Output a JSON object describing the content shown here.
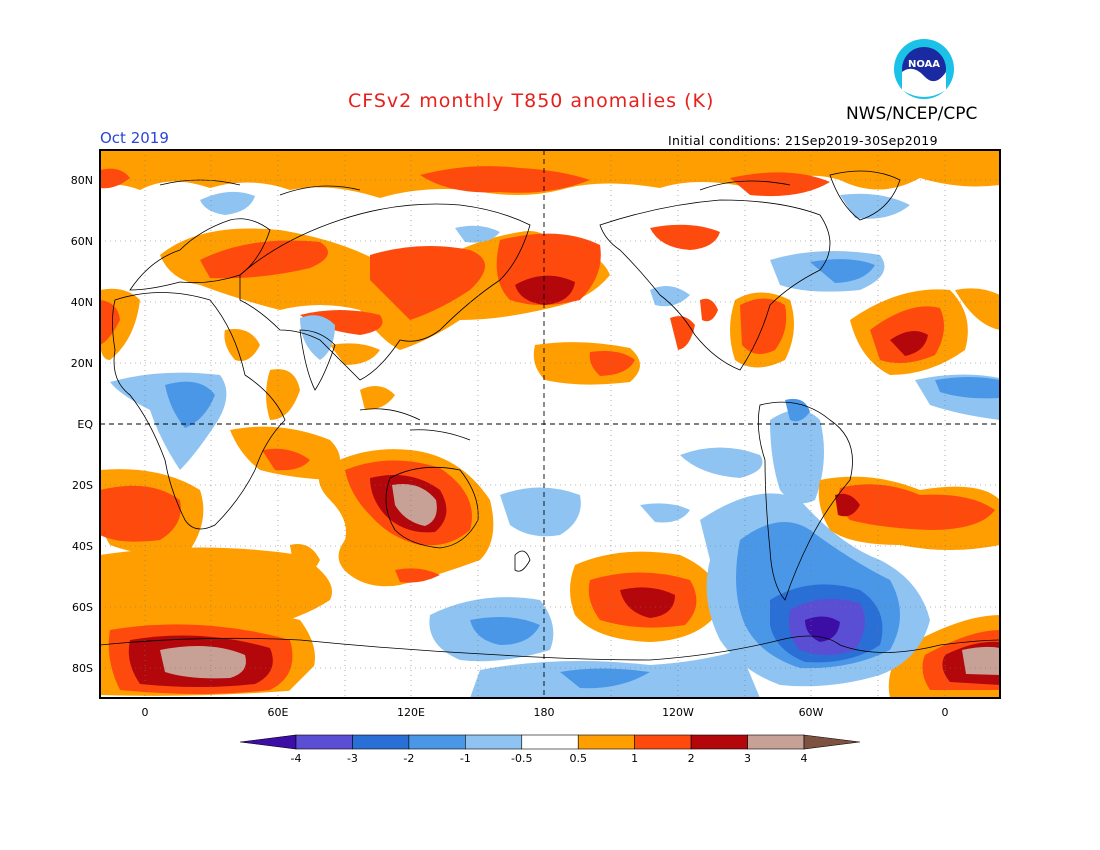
{
  "header": {
    "title": "CFSv2 monthly T850 anomalies (K)",
    "organization": "NWS/NCEP/CPC",
    "logo_text": "NOAA",
    "valid_month": "Oct 2019",
    "initial_conditions": "Initial conditions: 21Sep2019-30Sep2019"
  },
  "colors": {
    "title": "#e8201c",
    "month": "#2a45d8",
    "frame": "#000000"
  },
  "map": {
    "projection": "equirectangular",
    "lon_range": [
      -20,
      380
    ],
    "lat_range": [
      -90,
      90
    ],
    "lat_labels": [
      "80N",
      "60N",
      "40N",
      "20N",
      "EQ",
      "20S",
      "40S",
      "60S",
      "80S"
    ],
    "lat_values": [
      80,
      60,
      40,
      20,
      0,
      -20,
      -40,
      -60,
      -80
    ],
    "lon_labels": [
      "0",
      "60E",
      "120E",
      "180",
      "120W",
      "60W",
      "0"
    ],
    "lon_values": [
      0,
      60,
      120,
      180,
      240,
      300,
      360
    ],
    "dashed_reference_lines": [
      "EQ",
      "180"
    ]
  },
  "colorbar": {
    "tick_labels": [
      "-4",
      "-3",
      "-2",
      "-1",
      "-0.5",
      "0.5",
      "1",
      "2",
      "3",
      "4"
    ],
    "bin_colors": [
      "#3d0ea6",
      "#5a4fd4",
      "#2a6fd6",
      "#4a97e8",
      "#8fc4f2",
      "#ffffff",
      "#ff9e00",
      "#ff4a0e",
      "#b3070c",
      "#c7a196",
      "#7d5240"
    ]
  },
  "anomaly_regions": [
    {
      "name": "North Pacific warm core",
      "value_class": "3",
      "lon": 180,
      "lat": 43
    },
    {
      "name": "Australia warm core",
      "value_class": "4",
      "lon": 132,
      "lat": -27
    },
    {
      "name": "Antarctic Atlantic-sector warm core",
      "value_class": "4",
      "lon": 40,
      "lat": -78
    },
    {
      "name": "South Pacific warm core",
      "value_class": "3",
      "lon": 207,
      "lat": -59
    },
    {
      "name": "Southern Ocean cold core",
      "value_class": "-4",
      "lon": 303,
      "lat": -67
    },
    {
      "name": "South Atlantic warm core",
      "value_class": "3",
      "lon": 330,
      "lat": -27
    },
    {
      "name": "North Atlantic warm core",
      "value_class": "3",
      "lon": 343,
      "lat": 27
    }
  ]
}
